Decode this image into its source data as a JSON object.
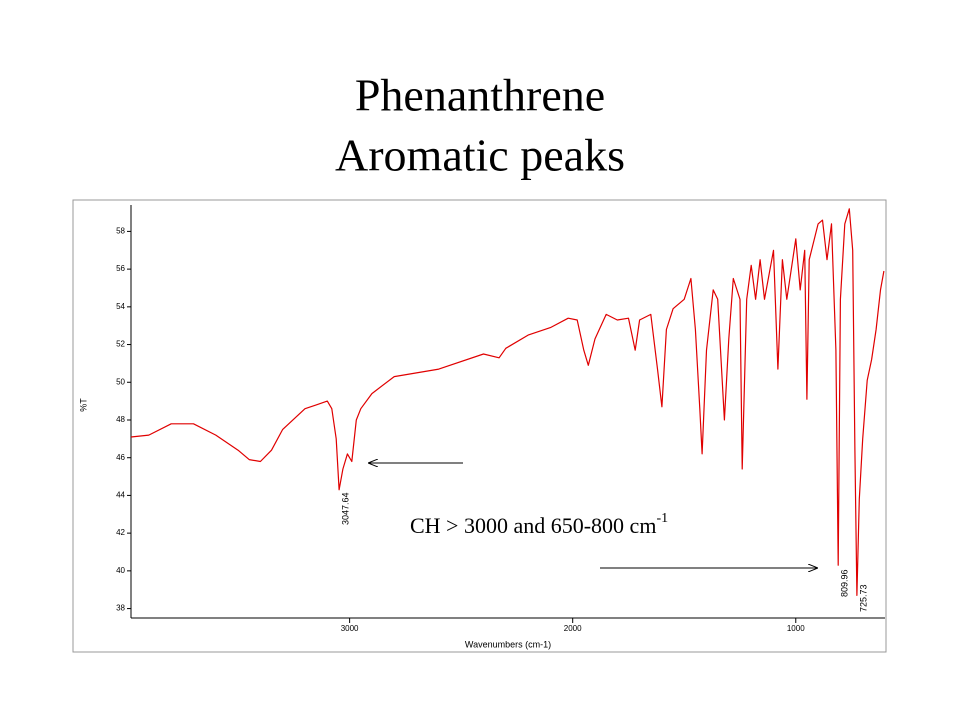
{
  "chart_data": {
    "type": "line",
    "title": [
      "Phenanthrene",
      "Aromatic peaks"
    ],
    "x_label": "Wavenumbers (cm-1)",
    "y_label": "%T",
    "annotation": {
      "text": "CH > 3000 and 650-800 cm",
      "superscript": "-1"
    },
    "peak_labels": [
      3047.64,
      809.96,
      725.73
    ],
    "xlim": [
      3980,
      600
    ],
    "ylim": [
      37.5,
      59.4
    ],
    "xticks": [
      3000,
      2000,
      1000
    ],
    "yticks": [
      38,
      40,
      42,
      44,
      46,
      48,
      50,
      52,
      54,
      56,
      58
    ],
    "series": [
      {
        "color": "#e00000",
        "x": [
          3980,
          3900,
          3800,
          3700,
          3600,
          3500,
          3450,
          3400,
          3350,
          3300,
          3200,
          3150,
          3100,
          3080,
          3060,
          3047,
          3030,
          3010,
          2990,
          2970,
          2950,
          2900,
          2800,
          2600,
          2400,
          2330,
          2300,
          2200,
          2100,
          2020,
          1980,
          1950,
          1930,
          1900,
          1850,
          1800,
          1750,
          1720,
          1700,
          1650,
          1620,
          1600,
          1580,
          1550,
          1500,
          1470,
          1450,
          1430,
          1420,
          1400,
          1370,
          1350,
          1320,
          1300,
          1280,
          1250,
          1240,
          1220,
          1200,
          1180,
          1160,
          1140,
          1100,
          1080,
          1060,
          1040,
          1000,
          980,
          960,
          950,
          940,
          900,
          880,
          860,
          840,
          820,
          810,
          800,
          780,
          760,
          745,
          735,
          726,
          715,
          700,
          680,
          660,
          640,
          620,
          605
        ],
        "values": [
          47.1,
          47.2,
          47.8,
          47.8,
          47.2,
          46.4,
          45.9,
          45.8,
          46.4,
          47.5,
          48.6,
          48.8,
          49.0,
          48.6,
          47.0,
          44.3,
          45.4,
          46.2,
          45.8,
          48.0,
          48.6,
          49.4,
          50.3,
          50.7,
          51.5,
          51.3,
          51.8,
          52.5,
          52.9,
          53.4,
          53.3,
          51.7,
          50.9,
          52.3,
          53.6,
          53.3,
          53.4,
          51.7,
          53.3,
          53.6,
          50.7,
          48.7,
          52.8,
          53.9,
          54.4,
          55.5,
          52.8,
          48.6,
          46.2,
          51.7,
          54.9,
          54.4,
          48.0,
          52.3,
          55.5,
          54.4,
          45.4,
          54.4,
          56.2,
          54.4,
          56.5,
          54.4,
          57.0,
          50.7,
          56.5,
          54.4,
          57.6,
          54.9,
          57.0,
          49.1,
          56.5,
          58.4,
          58.6,
          56.5,
          58.4,
          51.7,
          40.3,
          54.4,
          58.4,
          59.2,
          57.0,
          46.4,
          38.7,
          43.8,
          47.0,
          50.1,
          51.2,
          52.8,
          54.9,
          55.9
        ]
      }
    ]
  }
}
